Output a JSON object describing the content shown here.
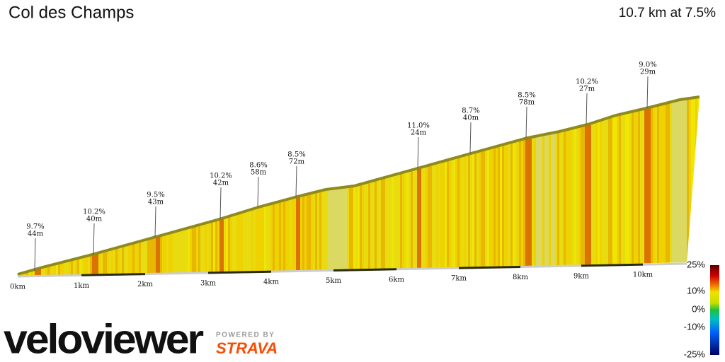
{
  "header": {
    "title": "Col des Champs",
    "summary": "10.7 km at 7.5%"
  },
  "annotations": [
    {
      "grade": "9.7%",
      "length": "44m"
    },
    {
      "grade": "10.2%",
      "length": "40m"
    },
    {
      "grade": "9.5%",
      "length": "43m"
    },
    {
      "grade": "10.2%",
      "length": "42m"
    },
    {
      "grade": "8.6%",
      "length": "58m"
    },
    {
      "grade": "8.5%",
      "length": "72m"
    },
    {
      "grade": "11.0%",
      "length": "24m"
    },
    {
      "grade": "8.7%",
      "length": "40m"
    },
    {
      "grade": "8.5%",
      "length": "78m"
    },
    {
      "grade": "10.2%",
      "length": "27m"
    },
    {
      "grade": "9.0%",
      "length": "29m"
    }
  ],
  "distance_labels": [
    "0km",
    "1km",
    "2km",
    "3km",
    "4km",
    "5km",
    "6km",
    "7km",
    "8km",
    "9km",
    "10km"
  ],
  "color_scale": [
    "25%",
    "10%",
    "0%",
    "-10%",
    "-25%"
  ],
  "branding": {
    "logo": "veloviewer",
    "powered": "POWERED BY",
    "partner": "STRAVA"
  }
}
